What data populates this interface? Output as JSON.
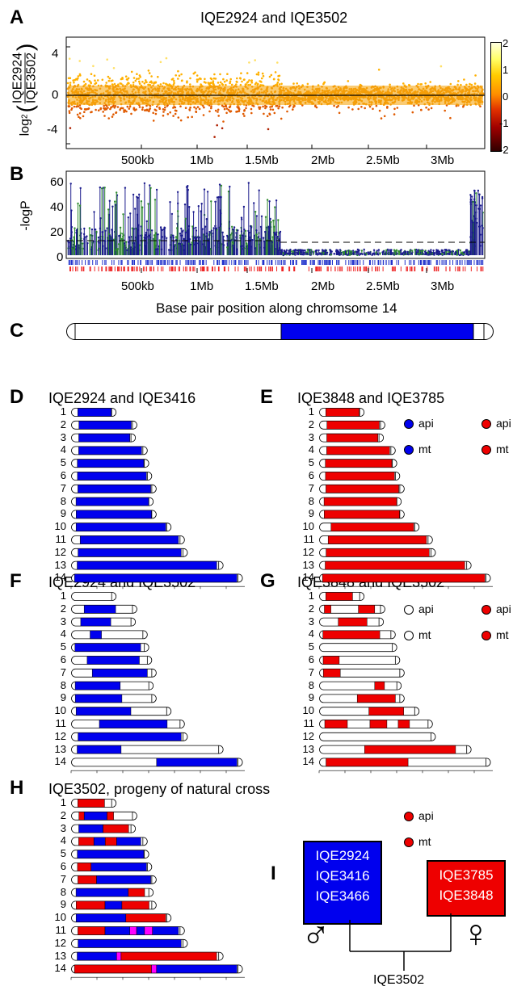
{
  "panels": {
    "A": {
      "label": "A",
      "title": "IQE2924 and IQE3502",
      "ylabel_top": "IQE2924",
      "ylabel_bottom": "IQE3502",
      "ylabel_prefix": "log",
      "ylabel_sub": "2",
      "yticks": [
        "4",
        "0",
        "-4"
      ],
      "colorbar_ticks": [
        "2",
        "1",
        "0",
        "-1",
        "-2"
      ],
      "xticks": [
        "500kb",
        "1Mb",
        "1.5Mb",
        "2Mb",
        "2.5Mb",
        "3Mb"
      ]
    },
    "B": {
      "label": "B",
      "ylabel": "-logP",
      "yticks": [
        "60",
        "40",
        "20",
        "0"
      ],
      "xticks": [
        "500kb",
        "1Mb",
        "1.5Mb",
        "2Mb",
        "2.5Mb",
        "3Mb"
      ],
      "xlabel": "Base pair position along chromsome 14"
    },
    "C": {
      "label": "C"
    },
    "D": {
      "label": "D",
      "title": "IQE2924 and IQE3416",
      "legend": [
        "api",
        "mt"
      ],
      "legend_colors": [
        "#0000ee",
        "#0000ee"
      ]
    },
    "E": {
      "label": "E",
      "title": "IQE3848 and IQE3785",
      "legend": [
        "api",
        "mt"
      ],
      "legend_colors": [
        "#ee0000",
        "#ee0000"
      ]
    },
    "F": {
      "label": "F",
      "title": "IQE2924 and IQE3502",
      "legend": [
        "api",
        "mt"
      ],
      "legend_colors": [
        "#ffffff",
        "#ffffff"
      ]
    },
    "G": {
      "label": "G",
      "title": "IQE3848 and IQE3502",
      "legend": [
        "api",
        "mt"
      ],
      "legend_colors": [
        "#ee0000",
        "#ee0000"
      ]
    },
    "H": {
      "label": "H",
      "title": "IQE3502, progeny of natural cross",
      "legend": [
        "api",
        "mt"
      ],
      "legend_colors": [
        "#ee0000",
        "#ee0000"
      ]
    },
    "I": {
      "label": "I",
      "male_parents": [
        "IQE2924",
        "IQE3416",
        "IQE3466"
      ],
      "female_parents": [
        "IQE3785",
        "IQE3848"
      ],
      "male_symbol": "♂",
      "female_symbol": "♀",
      "progeny": "IQE3502"
    }
  },
  "chromosome_numbers": [
    "1",
    "2",
    "3",
    "4",
    "5",
    "6",
    "7",
    "8",
    "9",
    "10",
    "11",
    "12",
    "13",
    "14"
  ],
  "colors": {
    "blue": "#0000ee",
    "red": "#ee0000",
    "magenta": "#ff00ff",
    "navy": "#1a1a8c",
    "green": "#2e8b2e",
    "orange": "#f39c12"
  }
}
